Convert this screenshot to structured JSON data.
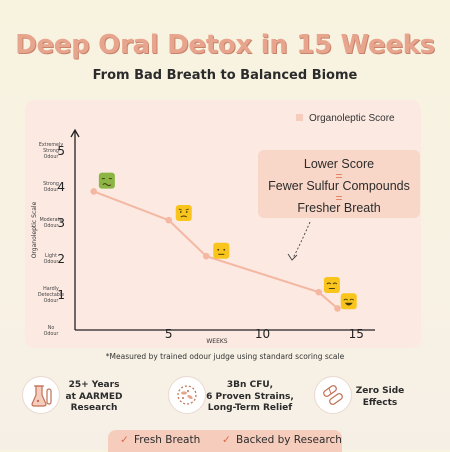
{
  "header": {
    "title": "Deep Oral Detox in 15 Weeks",
    "subtitle": "From Bad Breath to Balanced Biome"
  },
  "callout": {
    "line1": "Lower Score",
    "line2": "Fewer Sulfur Compounds",
    "line3": "Fresher Breath",
    "equals": "="
  },
  "note": "*Measured by trained odour judge using standard scoring scale",
  "features": [
    {
      "icon": "lab-flask-icon",
      "text_lines": [
        "25+ Years",
        "at AARMED",
        "Research"
      ]
    },
    {
      "icon": "bacteria-icon",
      "text_lines": [
        "3Bn CFU,",
        "6 Proven Strains,",
        "Long-Term Relief"
      ]
    },
    {
      "icon": "capsules-icon",
      "text_lines": [
        "Zero Side",
        "Effects"
      ]
    }
  ],
  "bottom_bar": {
    "item1": "Fresh Breath",
    "item2": "Backed by Research",
    "check": "✓"
  },
  "colors": {
    "accent": "#e8a58e",
    "line": "#f4b7a2",
    "card": "#fbe9e2",
    "emoji_yellow": "#f9c51c",
    "emoji_green": "#8bb545"
  },
  "chart_data": {
    "type": "line",
    "title": "",
    "xlabel": "WEEKS",
    "ylabel": "Organoleptic Scale",
    "xlim": [
      0,
      16
    ],
    "ylim": [
      0,
      5
    ],
    "x_ticks": [
      5,
      10,
      15
    ],
    "y_ticks": [
      1,
      2,
      3,
      4,
      5
    ],
    "y_tick_descriptions": [
      {
        "value": 0,
        "label": "No Odour"
      },
      {
        "value": 1,
        "label": "Hardly Detectable Odour"
      },
      {
        "value": 2,
        "label": "Light Odour"
      },
      {
        "value": 3,
        "label": "Moderate Odour"
      },
      {
        "value": 4,
        "label": "Strong Odour"
      },
      {
        "value": 5,
        "label": "Extremely Strong Odour"
      }
    ],
    "legend": {
      "position": "top-right"
    },
    "series": [
      {
        "name": "Organoleptic Score",
        "x": [
          1,
          5,
          7,
          13,
          14
        ],
        "y": [
          3.85,
          3.05,
          2.05,
          1.05,
          0.6
        ]
      }
    ],
    "emoji_markers": [
      {
        "x": 1.7,
        "y": 4.15,
        "face": "sick",
        "color": "#8bb545"
      },
      {
        "x": 5.8,
        "y": 3.25,
        "face": "frown",
        "color": "#f9c51c"
      },
      {
        "x": 7.8,
        "y": 2.2,
        "face": "neutral",
        "color": "#f9c51c"
      },
      {
        "x": 13.7,
        "y": 1.25,
        "face": "content",
        "color": "#f9c51c"
      },
      {
        "x": 14.6,
        "y": 0.8,
        "face": "happy",
        "color": "#f9c51c"
      }
    ]
  }
}
